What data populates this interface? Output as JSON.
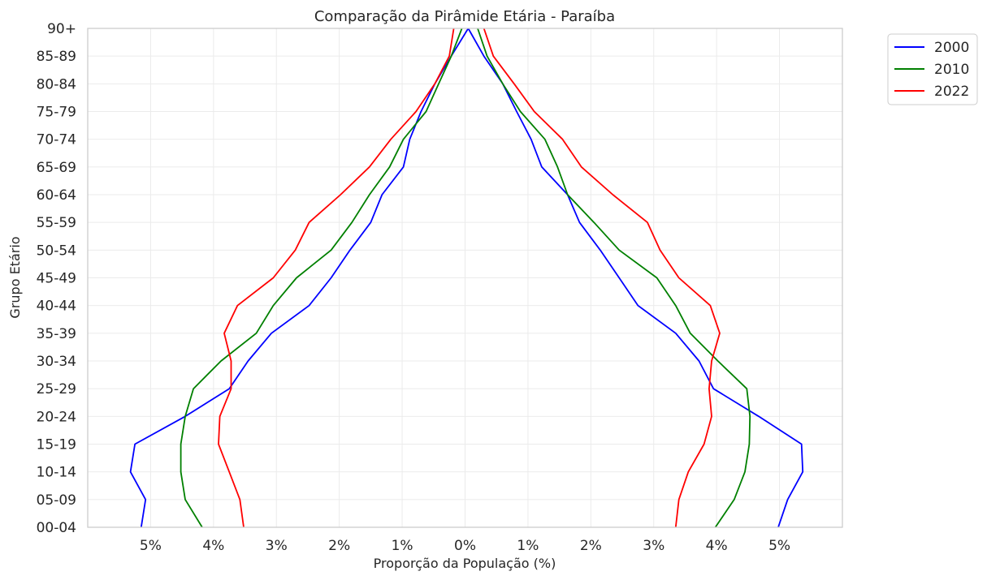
{
  "chart_data": {
    "type": "line",
    "title": "Comparação da Pirâmide Etária - Paraíba",
    "xlabel": "Proporção da População (%)",
    "ylabel": "Grupo Etário",
    "xlim": [
      -6.0,
      6.0
    ],
    "x_ticks": [
      -5,
      -4,
      -3,
      -2,
      -1,
      0,
      1,
      2,
      3,
      4,
      5
    ],
    "x_tick_labels": [
      "5%",
      "4%",
      "3%",
      "2%",
      "1%",
      "0%",
      "1%",
      "2%",
      "3%",
      "4%",
      "5%"
    ],
    "categories": [
      "00-04",
      "05-09",
      "10-14",
      "15-19",
      "20-24",
      "25-29",
      "30-34",
      "35-39",
      "40-44",
      "45-49",
      "50-54",
      "55-59",
      "60-64",
      "65-69",
      "70-74",
      "75-79",
      "80-84",
      "85-89",
      "90+"
    ],
    "grid": true,
    "legend_position": "outside-top-right",
    "series": [
      {
        "name": "2000",
        "color": "#0000ff",
        "left": [
          -5.15,
          -5.08,
          -5.32,
          -5.25,
          -4.45,
          -3.75,
          -3.45,
          -3.08,
          -2.48,
          -2.13,
          -1.83,
          -1.5,
          -1.32,
          -0.98,
          -0.88,
          -0.7,
          -0.48,
          -0.22,
          0.05
        ],
        "right": [
          4.98,
          5.13,
          5.37,
          5.35,
          4.67,
          3.95,
          3.72,
          3.35,
          2.75,
          2.45,
          2.15,
          1.82,
          1.63,
          1.22,
          1.05,
          0.82,
          0.6,
          0.3,
          0.05
        ]
      },
      {
        "name": "2010",
        "color": "#008000",
        "left": [
          -4.18,
          -4.45,
          -4.52,
          -4.52,
          -4.45,
          -4.32,
          -3.88,
          -3.32,
          -3.05,
          -2.68,
          -2.13,
          -1.8,
          -1.52,
          -1.2,
          -0.98,
          -0.62,
          -0.42,
          -0.22,
          -0.05
        ],
        "right": [
          3.98,
          4.28,
          4.45,
          4.52,
          4.53,
          4.48,
          4.02,
          3.58,
          3.35,
          3.05,
          2.45,
          2.05,
          1.63,
          1.47,
          1.27,
          0.88,
          0.6,
          0.35,
          0.2
        ]
      },
      {
        "name": "2022",
        "color": "#ff0000",
        "left": [
          -3.52,
          -3.58,
          -3.75,
          -3.92,
          -3.9,
          -3.72,
          -3.72,
          -3.83,
          -3.62,
          -3.05,
          -2.7,
          -2.48,
          -1.98,
          -1.52,
          -1.18,
          -0.78,
          -0.48,
          -0.25,
          -0.18
        ],
        "right": [
          3.35,
          3.4,
          3.55,
          3.8,
          3.92,
          3.88,
          3.92,
          4.05,
          3.9,
          3.4,
          3.1,
          2.9,
          2.35,
          1.85,
          1.55,
          1.1,
          0.78,
          0.45,
          0.3
        ]
      }
    ]
  }
}
